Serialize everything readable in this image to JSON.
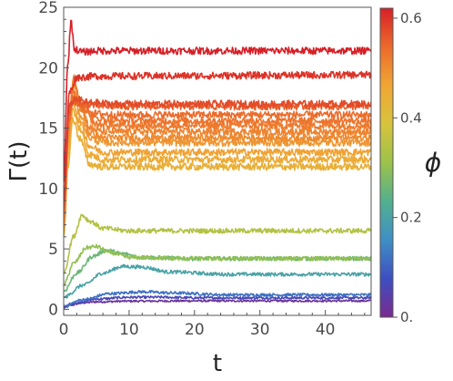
{
  "chart_data": {
    "type": "line",
    "title": "",
    "xlabel": "t",
    "ylabel": "Γ(t)",
    "xlim": [
      0,
      47
    ],
    "ylim": [
      -0.5,
      25
    ],
    "xticks": [
      "0",
      "10",
      "20",
      "30",
      "40"
    ],
    "yticks": [
      "0",
      "5",
      "10",
      "15",
      "20",
      "25"
    ],
    "colorbar": {
      "label": "ϕ",
      "range": [
        0,
        0.62
      ],
      "ticks": [
        "0.",
        "0.2",
        "0.4",
        "0.6"
      ],
      "colors": [
        "#7a2a8f",
        "#3d4fc0",
        "#3f8fc5",
        "#52b08f",
        "#9cc24a",
        "#d7c33d",
        "#f0a634",
        "#ec6a2b",
        "#d62027"
      ]
    },
    "series": [
      {
        "phi": 0.02,
        "values": [
          [
            0,
            0.1
          ],
          [
            1,
            0.35
          ],
          [
            3,
            0.55
          ],
          [
            5,
            0.62
          ],
          [
            10,
            0.68
          ],
          [
            20,
            0.7
          ],
          [
            47,
            0.7
          ]
        ],
        "noise": 0.08
      },
      {
        "phi": 0.06,
        "values": [
          [
            0,
            0.2
          ],
          [
            2,
            0.55
          ],
          [
            5,
            0.85
          ],
          [
            10,
            1.0
          ],
          [
            15,
            1.0
          ],
          [
            20,
            0.95
          ],
          [
            47,
            0.95
          ]
        ],
        "noise": 0.1
      },
      {
        "phi": 0.12,
        "values": [
          [
            0,
            0.3
          ],
          [
            3,
            0.8
          ],
          [
            7,
            1.3
          ],
          [
            12,
            1.45
          ],
          [
            17,
            1.35
          ],
          [
            25,
            1.2
          ],
          [
            47,
            1.2
          ]
        ],
        "noise": 0.12
      },
      {
        "phi": 0.2,
        "values": [
          [
            0,
            1.0
          ],
          [
            3,
            2.0
          ],
          [
            6,
            3.0
          ],
          [
            9,
            3.55
          ],
          [
            12,
            3.5
          ],
          [
            16,
            3.1
          ],
          [
            25,
            2.9
          ],
          [
            47,
            2.9
          ]
        ],
        "noise": 0.15
      },
      {
        "phi": 0.26,
        "values": [
          [
            0,
            1.5
          ],
          [
            2,
            3.0
          ],
          [
            4.5,
            4.4
          ],
          [
            6.5,
            4.9
          ],
          [
            9,
            4.6
          ],
          [
            12,
            4.3
          ],
          [
            20,
            4.2
          ],
          [
            47,
            4.2
          ]
        ],
        "noise": 0.17
      },
      {
        "phi": 0.3,
        "values": [
          [
            0,
            2.0
          ],
          [
            1.5,
            3.8
          ],
          [
            3.5,
            5.1
          ],
          [
            5,
            5.2
          ],
          [
            7,
            4.7
          ],
          [
            10,
            4.3
          ],
          [
            20,
            4.2
          ],
          [
            47,
            4.2
          ]
        ],
        "noise": 0.17
      },
      {
        "phi": 0.34,
        "values": [
          [
            0,
            3.0
          ],
          [
            1.5,
            6.0
          ],
          [
            2.8,
            7.8
          ],
          [
            4,
            7.3
          ],
          [
            6,
            6.7
          ],
          [
            10,
            6.5
          ],
          [
            47,
            6.5
          ]
        ],
        "noise": 0.2
      },
      {
        "phi": 0.44,
        "values": [
          [
            0,
            6.0
          ],
          [
            0.7,
            12.0
          ],
          [
            1.4,
            15.8
          ],
          [
            2.4,
            14.2
          ],
          [
            4,
            12.0
          ],
          [
            6,
            11.8
          ],
          [
            47,
            11.8
          ]
        ],
        "noise": 0.3
      },
      {
        "phi": 0.455,
        "values": [
          [
            0,
            6.2
          ],
          [
            0.7,
            12.8
          ],
          [
            1.4,
            16.5
          ],
          [
            2.4,
            15.0
          ],
          [
            4,
            12.8
          ],
          [
            6,
            12.4
          ],
          [
            47,
            12.4
          ]
        ],
        "noise": 0.3
      },
      {
        "phi": 0.47,
        "values": [
          [
            0,
            6.5
          ],
          [
            0.7,
            13.5
          ],
          [
            1.4,
            17.2
          ],
          [
            2.4,
            15.6
          ],
          [
            4,
            13.5
          ],
          [
            6,
            13.0
          ],
          [
            47,
            13.0
          ]
        ],
        "noise": 0.3
      },
      {
        "phi": 0.485,
        "values": [
          [
            0,
            6.8
          ],
          [
            0.7,
            14.0
          ],
          [
            1.4,
            18.0
          ],
          [
            2.4,
            16.2
          ],
          [
            4,
            14.2
          ],
          [
            6,
            13.8
          ],
          [
            47,
            13.8
          ]
        ],
        "noise": 0.3
      },
      {
        "phi": 0.5,
        "values": [
          [
            0,
            7.0
          ],
          [
            0.7,
            14.5
          ],
          [
            1.5,
            18.8
          ],
          [
            2.6,
            16.6
          ],
          [
            4,
            14.6
          ],
          [
            6,
            14.2
          ],
          [
            47,
            14.2
          ]
        ],
        "noise": 0.3
      },
      {
        "phi": 0.51,
        "values": [
          [
            0,
            7.2
          ],
          [
            0.7,
            15.0
          ],
          [
            1.5,
            19.2
          ],
          [
            2.8,
            16.8
          ],
          [
            4,
            15.0
          ],
          [
            6,
            14.7
          ],
          [
            47,
            14.7
          ]
        ],
        "noise": 0.3
      },
      {
        "phi": 0.52,
        "values": [
          [
            0,
            7.4
          ],
          [
            0.7,
            15.3
          ],
          [
            1.5,
            18.6
          ],
          [
            3,
            16.5
          ],
          [
            5,
            15.3
          ],
          [
            8,
            15.2
          ],
          [
            47,
            15.2
          ]
        ],
        "noise": 0.3
      },
      {
        "phi": 0.53,
        "values": [
          [
            0,
            7.6
          ],
          [
            0.7,
            15.6
          ],
          [
            1.5,
            18.0
          ],
          [
            3,
            16.6
          ],
          [
            5,
            15.8
          ],
          [
            8,
            15.6
          ],
          [
            47,
            15.6
          ]
        ],
        "noise": 0.3
      },
      {
        "phi": 0.54,
        "values": [
          [
            0,
            7.8
          ],
          [
            0.8,
            15.8
          ],
          [
            1.6,
            17.5
          ],
          [
            3,
            16.8
          ],
          [
            5,
            16.2
          ],
          [
            8,
            16.1
          ],
          [
            47,
            16.1
          ]
        ],
        "noise": 0.3
      },
      {
        "phi": 0.555,
        "values": [
          [
            0,
            8.0
          ],
          [
            0.8,
            16.2
          ],
          [
            1.6,
            17.2
          ],
          [
            3,
            17.0
          ],
          [
            6,
            16.8
          ],
          [
            47,
            16.8
          ]
        ],
        "noise": 0.3
      },
      {
        "phi": 0.575,
        "values": [
          [
            0,
            8.4
          ],
          [
            0.9,
            16.8
          ],
          [
            1.7,
            17.4
          ],
          [
            4,
            17.1
          ],
          [
            8,
            17.0
          ],
          [
            47,
            17.0
          ]
        ],
        "noise": 0.3
      },
      {
        "phi": 0.6,
        "values": [
          [
            0,
            9.0
          ],
          [
            0.9,
            18.0
          ],
          [
            2,
            19.2
          ],
          [
            5,
            19.3
          ],
          [
            47,
            19.4
          ]
        ],
        "noise": 0.3
      },
      {
        "phi": 0.62,
        "values": [
          [
            0,
            10.5
          ],
          [
            0.6,
            20.0
          ],
          [
            1.1,
            23.8
          ],
          [
            1.7,
            21.5
          ],
          [
            3,
            21.3
          ],
          [
            5,
            21.4
          ],
          [
            47,
            21.4
          ]
        ],
        "noise": 0.3
      }
    ]
  }
}
